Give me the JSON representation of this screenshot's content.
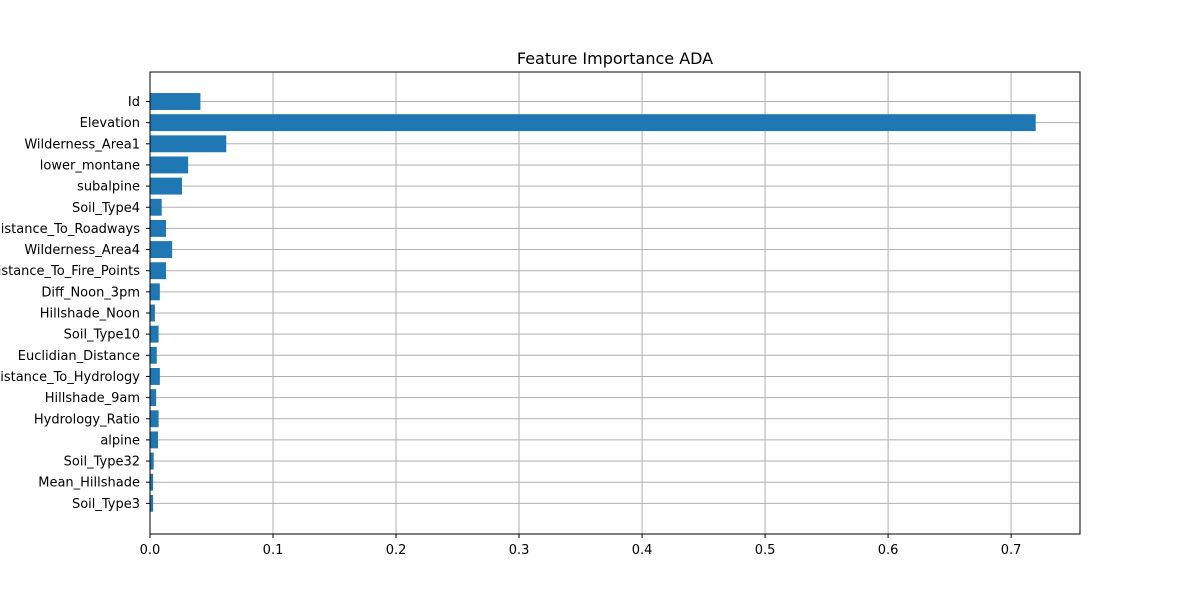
{
  "chart_data": {
    "type": "bar",
    "orientation": "horizontal",
    "title": "Feature Importance ADA",
    "xlabel": "",
    "ylabel": "",
    "xlim": [
      0,
      0.756
    ],
    "xticks": [
      0.0,
      0.1,
      0.2,
      0.3,
      0.4,
      0.5,
      0.6,
      0.7
    ],
    "xtick_labels": [
      "0.0",
      "0.1",
      "0.2",
      "0.3",
      "0.4",
      "0.5",
      "0.6",
      "0.7"
    ],
    "grid": true,
    "bar_color": "#1f77b4",
    "grid_color": "#b0b0b0",
    "categories": [
      "Id",
      "Elevation",
      "Wilderness_Area1",
      "lower_montane",
      "subalpine",
      "Soil_Type4",
      "Horizontal_Distance_To_Roadways",
      "Wilderness_Area4",
      "Horizontal_Distance_To_Fire_Points",
      "Diff_Noon_3pm",
      "Hillshade_Noon",
      "Soil_Type10",
      "Euclidian_Distance",
      "Vertical_Distance_To_Hydrology",
      "Hillshade_9am",
      "Hydrology_Ratio",
      "alpine",
      "Soil_Type32",
      "Mean_Hillshade",
      "Soil_Type3"
    ],
    "values": [
      0.041,
      0.72,
      0.062,
      0.031,
      0.026,
      0.0095,
      0.013,
      0.018,
      0.013,
      0.008,
      0.004,
      0.007,
      0.0055,
      0.008,
      0.005,
      0.007,
      0.0065,
      0.003,
      0.0025,
      0.0025
    ]
  }
}
